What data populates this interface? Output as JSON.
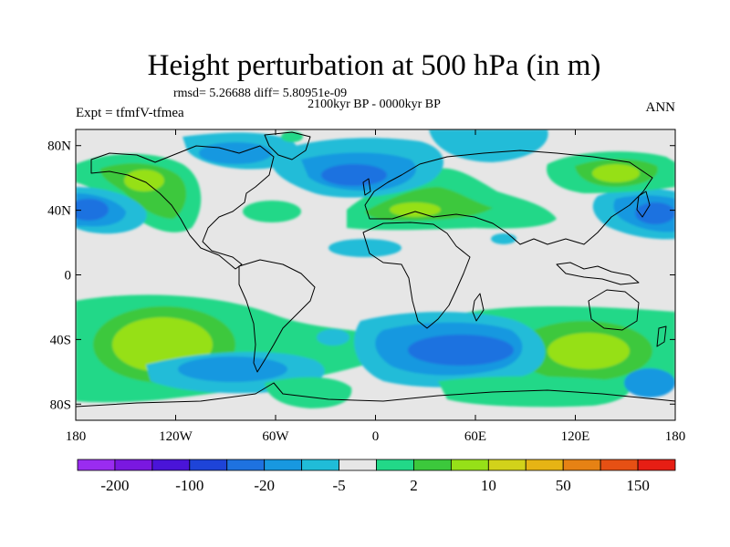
{
  "figure": {
    "title": "Height perturbation at 500 hPa (in m)",
    "stats": "rmsd= 5.26688 diff= 5.80951e-09",
    "period": "2100kyr BP - 0000kyr BP",
    "experiment": "Expt = tfmfV-tfmea",
    "season": "ANN"
  },
  "axes": {
    "lat_ticks": [
      {
        "lat": 80,
        "label": "80N"
      },
      {
        "lat": 40,
        "label": "40N"
      },
      {
        "lat": 0,
        "label": "0"
      },
      {
        "lat": -40,
        "label": "40S"
      },
      {
        "lat": -80,
        "label": "80S"
      }
    ],
    "lon_ticks": [
      {
        "lon": -180,
        "label": "180"
      },
      {
        "lon": -120,
        "label": "120W"
      },
      {
        "lon": -60,
        "label": "60W"
      },
      {
        "lon": 0,
        "label": "0"
      },
      {
        "lon": 60,
        "label": "60E"
      },
      {
        "lon": 120,
        "label": "120E"
      },
      {
        "lon": 180,
        "label": "180"
      }
    ],
    "lon_range": [
      -180,
      180
    ],
    "lat_range": [
      -90,
      90
    ]
  },
  "colorbar": {
    "colors": [
      "#9a2cf0",
      "#7a18e0",
      "#4a14d8",
      "#1e44d8",
      "#1e72e0",
      "#1898e0",
      "#20bcd8",
      "#e6e6e6",
      "#22d888",
      "#3cc83c",
      "#96e018",
      "#d2d21a",
      "#e6b414",
      "#e68214",
      "#e65014",
      "#e61e14"
    ],
    "labels": [
      {
        "boundary": 1,
        "text": "-200"
      },
      {
        "boundary": 3,
        "text": "-100"
      },
      {
        "boundary": 5,
        "text": "-20"
      },
      {
        "boundary": 7,
        "text": "-5"
      },
      {
        "boundary": 9,
        "text": "2"
      },
      {
        "boundary": 11,
        "text": "10"
      },
      {
        "boundary": 13,
        "text": "50"
      },
      {
        "boundary": 15,
        "text": "150"
      }
    ]
  }
}
